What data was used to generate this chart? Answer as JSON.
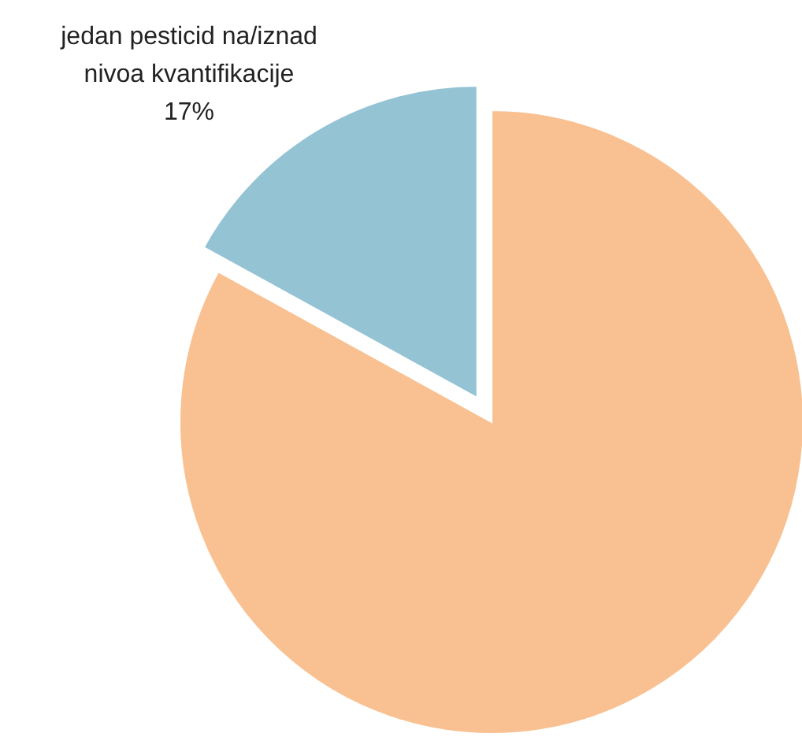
{
  "chart_data": {
    "type": "pie",
    "categories": [
      "jedan pesticid na/iznad nivoa kvantifikacije",
      null
    ],
    "values": [
      17,
      83
    ],
    "colors": [
      "#94c3d4",
      "#f9c192"
    ],
    "value_labels": [
      "17%",
      null
    ]
  }
}
